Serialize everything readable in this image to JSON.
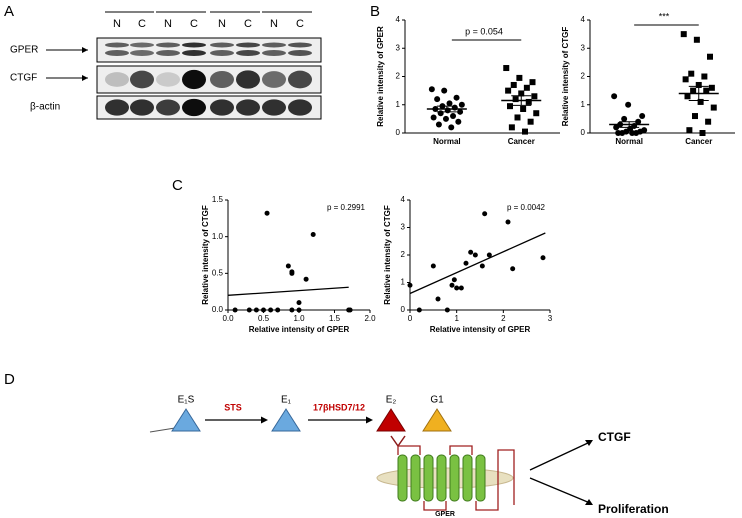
{
  "panel_labels": [
    "A",
    "B",
    "C",
    "D"
  ],
  "blot": {
    "lanes": [
      "N",
      "C",
      "N",
      "C",
      "N",
      "C",
      "N",
      "C"
    ],
    "rows": [
      "GPER",
      "CTGF",
      "β-actin"
    ]
  },
  "chart_data": [
    {
      "type": "dot_plot",
      "y_label": "Relative intensity of GPER",
      "categories": [
        "Normal",
        "Cancer"
      ],
      "markers": [
        "circle",
        "square"
      ],
      "values": [
        [
          1.55,
          1.5,
          1.25,
          1.2,
          1.05,
          1.0,
          0.95,
          0.9,
          0.85,
          0.8,
          0.75,
          0.7,
          0.6,
          0.55,
          0.5,
          0.4,
          0.3,
          0.2
        ],
        [
          2.3,
          1.95,
          1.8,
          1.7,
          1.6,
          1.5,
          1.4,
          1.3,
          1.2,
          1.1,
          0.95,
          0.85,
          0.7,
          0.55,
          0.4,
          0.2,
          0.05
        ]
      ],
      "mean": [
        0.85,
        1.15
      ],
      "sem": [
        0.1,
        0.17
      ],
      "ylim": [
        0,
        4
      ],
      "yticks": [
        0,
        1,
        2,
        3,
        4
      ],
      "annotation": "p = 0.054"
    },
    {
      "type": "dot_plot",
      "y_label": "Relative intensity of CTGF",
      "categories": [
        "Normal",
        "Cancer"
      ],
      "markers": [
        "circle",
        "square"
      ],
      "values": [
        [
          1.3,
          1.0,
          0.6,
          0.5,
          0.4,
          0.3,
          0.25,
          0.2,
          0.15,
          0.1,
          0.05,
          0.05,
          0.0,
          0.0,
          0.0,
          0.0
        ],
        [
          3.5,
          3.3,
          2.7,
          2.1,
          2.0,
          1.9,
          1.7,
          1.6,
          1.5,
          1.5,
          1.3,
          1.1,
          0.9,
          0.6,
          0.4,
          0.1,
          0.0
        ]
      ],
      "mean": [
        0.3,
        1.4
      ],
      "sem": [
        0.1,
        0.25
      ],
      "ylim": [
        0,
        4
      ],
      "yticks": [
        0,
        1,
        2,
        3,
        4
      ],
      "annotation": "***"
    },
    {
      "type": "scatter",
      "x_label": "Relative intensity of GPER",
      "y_label": "Relative intensity of CTGF",
      "x": [
        0.55,
        1.2,
        0.85,
        0.9,
        0.9,
        1.1,
        1.0,
        0.1,
        0.3,
        0.4,
        0.5,
        0.6,
        0.7,
        0.9,
        1.0,
        1.7,
        1.72
      ],
      "values": [
        1.32,
        1.03,
        0.6,
        0.52,
        0.5,
        0.42,
        0.1,
        0,
        0,
        0,
        0,
        0,
        0,
        0,
        0,
        0,
        0
      ],
      "fit_line": {
        "x": [
          0,
          1.7
        ],
        "y": [
          0.2,
          0.31
        ]
      },
      "xlim": [
        0,
        2
      ],
      "xticks": [
        {
          "value": 0,
          "label": "0.0"
        },
        {
          "value": 0.5,
          "label": "0.5"
        },
        {
          "value": 1,
          "label": "1.0"
        },
        {
          "value": 1.5,
          "label": "1.5"
        },
        {
          "value": 2,
          "label": "2.0"
        }
      ],
      "ylim": [
        0,
        1.5
      ],
      "yticks": [
        {
          "value": 0,
          "label": "0.0"
        },
        {
          "value": 0.5,
          "label": "0.5"
        },
        {
          "value": 1,
          "label": "1.0"
        },
        {
          "value": 1.5,
          "label": "1.5"
        }
      ],
      "annotation": "p = 0.2991"
    },
    {
      "type": "scatter",
      "x_label": "Relative intensity of GPER",
      "y_label": "Relative intensity of CTGF",
      "x": [
        0,
        0.2,
        0.5,
        0.6,
        0.8,
        0.9,
        0.95,
        1.0,
        1.1,
        1.2,
        1.3,
        1.4,
        1.55,
        1.6,
        1.7,
        2.1,
        2.2,
        2.85
      ],
      "values": [
        0.9,
        0,
        1.6,
        0.4,
        0,
        0.9,
        1.1,
        0.8,
        0.8,
        1.7,
        2.1,
        2.0,
        1.6,
        3.5,
        2.0,
        3.2,
        1.5,
        1.9
      ],
      "fit_line": {
        "x": [
          0,
          2.9
        ],
        "y": [
          0.6,
          2.8
        ]
      },
      "xlim": [
        0,
        3
      ],
      "xticks": [
        0,
        1,
        2,
        3
      ],
      "ylim": [
        0,
        4
      ],
      "yticks": [
        0,
        1,
        2,
        3,
        4
      ],
      "annotation": "p = 0.0042"
    }
  ],
  "diagram": {
    "nodes": [
      "E₁S",
      "E₁",
      "E₂",
      "G1"
    ],
    "enzymes": [
      "STS",
      "17βHSD7/12"
    ],
    "receptor": "GPER",
    "outputs": [
      "CTGF",
      "Proliferation"
    ]
  }
}
